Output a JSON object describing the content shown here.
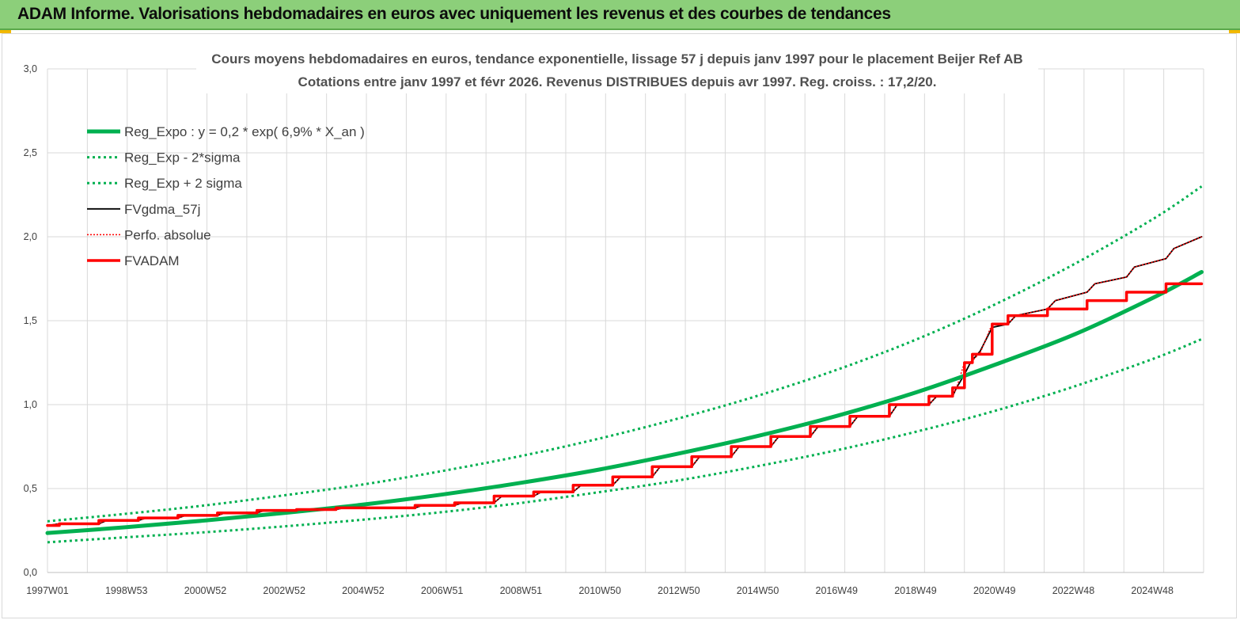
{
  "header": {
    "title": "ADAM Informe. Valorisations hebdomadaires en euros avec uniquement les revenus et des courbes de tendances"
  },
  "colors": {
    "header_bg": "#8ccf7a",
    "trend": "#00b050",
    "fv": "#000000",
    "adam": "#ff0000",
    "grid": "#d9d9d9"
  },
  "chart_data": {
    "type": "line",
    "title": "Cours moyens hebdomadaires en euros, tendance exponentielle, lissage 57 j depuis janv 1997 pour le placement Beijer Ref AB",
    "subtitle": "Cotations entre janv 1997 et févr 2026. Revenus DISTRIBUES depuis avr 1997. Reg. croiss. : 17,2/20.",
    "xlabel": "",
    "ylabel": "",
    "x_tick_labels": [
      "1997W01",
      "1998W53",
      "2000W52",
      "2002W52",
      "2004W52",
      "2006W51",
      "2008W51",
      "2010W50",
      "2012W50",
      "2014W50",
      "2016W49",
      "2018W49",
      "2020W49",
      "2022W48",
      "2024W48"
    ],
    "y_tick_labels": [
      "0,0",
      "0,5",
      "1,0",
      "1,5",
      "2,0",
      "2,5",
      "3,0"
    ],
    "ylim": [
      0,
      3
    ],
    "xlim": [
      1997.0,
      2026.25
    ],
    "grid": true,
    "legend_position": "top-left",
    "legend": [
      {
        "label": "Reg_Expo : y = 0,2 * exp( 6,9% *  X_an )",
        "color": "#00b050",
        "style": "solid-thick"
      },
      {
        "label": "Reg_Exp - 2*sigma",
        "color": "#00b050",
        "style": "dotted"
      },
      {
        "label": "Reg_Exp + 2 sigma",
        "color": "#00b050",
        "style": "dotted"
      },
      {
        "label": "FVgdma_57j",
        "color": "#000000",
        "style": "solid-thin"
      },
      {
        "label": "Perfo. absolue",
        "color": "#ff0000",
        "style": "dotted"
      },
      {
        "label": "FVADAM",
        "color": "#ff0000",
        "style": "solid-thick"
      }
    ],
    "series": [
      {
        "name": "Reg_Expo : y = 0,2 * exp( 6,9% *  X_an )",
        "x": [
          1997.0,
          1999.0,
          2001.0,
          2003.0,
          2005.0,
          2007.0,
          2009.0,
          2011.0,
          2013.0,
          2015.0,
          2017.0,
          2019.0,
          2021.0,
          2023.0,
          2025.0,
          2026.2
        ],
        "y": [
          0.235,
          0.27,
          0.31,
          0.355,
          0.405,
          0.465,
          0.535,
          0.615,
          0.71,
          0.815,
          0.935,
          1.075,
          1.24,
          1.42,
          1.64,
          1.79
        ]
      },
      {
        "name": "Reg_Exp - 2*sigma",
        "x": [
          1997.0,
          1999.0,
          2001.0,
          2003.0,
          2005.0,
          2007.0,
          2009.0,
          2011.0,
          2013.0,
          2015.0,
          2017.0,
          2019.0,
          2021.0,
          2023.0,
          2025.0,
          2026.2
        ],
        "y": [
          0.18,
          0.21,
          0.24,
          0.275,
          0.315,
          0.36,
          0.415,
          0.48,
          0.55,
          0.635,
          0.73,
          0.84,
          0.965,
          1.11,
          1.275,
          1.39
        ]
      },
      {
        "name": "Reg_Exp + 2 sigma",
        "x": [
          1997.0,
          1999.0,
          2001.0,
          2003.0,
          2005.0,
          2007.0,
          2009.0,
          2011.0,
          2013.0,
          2015.0,
          2017.0,
          2019.0,
          2021.0,
          2023.0,
          2025.0,
          2026.2
        ],
        "y": [
          0.305,
          0.35,
          0.4,
          0.46,
          0.525,
          0.605,
          0.695,
          0.8,
          0.92,
          1.055,
          1.21,
          1.39,
          1.6,
          1.84,
          2.11,
          2.3
        ]
      },
      {
        "name": "FVgdma_57j",
        "x": [
          1997.0,
          1997.3,
          1998.3,
          1998.5,
          1999.3,
          1999.5,
          2000.3,
          2000.5,
          2001.3,
          2001.5,
          2002.3,
          2002.5,
          2003.3,
          2003.5,
          2004.3,
          2004.5,
          2006.3,
          2006.5,
          2007.3,
          2007.5,
          2008.3,
          2008.5,
          2009.3,
          2009.5,
          2010.3,
          2010.5,
          2011.3,
          2011.5,
          2012.3,
          2012.5,
          2013.3,
          2013.5,
          2014.3,
          2014.5,
          2015.3,
          2015.5,
          2016.3,
          2016.5,
          2017.3,
          2017.5,
          2018.3,
          2018.5,
          2019.3,
          2019.5,
          2019.9,
          2020.0,
          2020.2,
          2020.35,
          2020.6,
          2020.9,
          2021.3,
          2021.5,
          2022.3,
          2022.5,
          2023.3,
          2023.5,
          2024.3,
          2024.5,
          2025.3,
          2025.5,
          2026.2
        ],
        "y": [
          0.28,
          0.29,
          0.29,
          0.31,
          0.31,
          0.325,
          0.325,
          0.34,
          0.34,
          0.355,
          0.355,
          0.37,
          0.37,
          0.375,
          0.375,
          0.385,
          0.385,
          0.4,
          0.4,
          0.415,
          0.415,
          0.455,
          0.455,
          0.48,
          0.48,
          0.52,
          0.52,
          0.57,
          0.57,
          0.63,
          0.63,
          0.69,
          0.69,
          0.75,
          0.75,
          0.81,
          0.81,
          0.87,
          0.87,
          0.93,
          0.93,
          1.0,
          1.0,
          1.05,
          1.05,
          1.1,
          1.18,
          1.25,
          1.32,
          1.46,
          1.48,
          1.53,
          1.57,
          1.62,
          1.67,
          1.72,
          1.76,
          1.82,
          1.87,
          1.93,
          2.0
        ]
      },
      {
        "name": "Perfo. absolue",
        "x": [
          1997.0,
          1997.3,
          1998.3,
          1998.5,
          1999.3,
          1999.5,
          2000.3,
          2000.5,
          2001.3,
          2001.5,
          2002.3,
          2002.5,
          2003.3,
          2003.5,
          2004.3,
          2004.5,
          2006.3,
          2006.5,
          2007.3,
          2007.5,
          2008.3,
          2008.5,
          2009.3,
          2009.5,
          2010.3,
          2010.5,
          2011.3,
          2011.5,
          2012.3,
          2012.5,
          2013.3,
          2013.5,
          2014.3,
          2014.5,
          2015.3,
          2015.5,
          2016.3,
          2016.5,
          2017.3,
          2017.5,
          2018.3,
          2018.5,
          2019.3,
          2019.5,
          2019.9,
          2020.0,
          2020.2,
          2020.35,
          2020.6,
          2020.9,
          2021.3,
          2021.5,
          2022.3,
          2022.5,
          2023.3,
          2023.5,
          2024.3,
          2024.5,
          2025.3,
          2025.5,
          2026.2
        ],
        "y": [
          0.28,
          0.29,
          0.29,
          0.31,
          0.31,
          0.325,
          0.325,
          0.34,
          0.34,
          0.355,
          0.355,
          0.37,
          0.37,
          0.375,
          0.375,
          0.385,
          0.385,
          0.4,
          0.4,
          0.415,
          0.415,
          0.455,
          0.455,
          0.48,
          0.48,
          0.52,
          0.52,
          0.57,
          0.57,
          0.63,
          0.63,
          0.69,
          0.69,
          0.75,
          0.75,
          0.81,
          0.81,
          0.87,
          0.87,
          0.93,
          0.93,
          1.0,
          1.0,
          1.05,
          1.05,
          1.1,
          1.25,
          1.25,
          1.31,
          1.48,
          1.48,
          1.53,
          1.57,
          1.62,
          1.67,
          1.72,
          1.76,
          1.82,
          1.87,
          1.93,
          2.0
        ]
      },
      {
        "name": "FVADAM",
        "x": [
          1997.0,
          1997.3,
          1997.3,
          1998.3,
          1998.3,
          1999.3,
          1999.3,
          2000.3,
          2000.3,
          2001.3,
          2001.3,
          2002.3,
          2002.3,
          2003.3,
          2003.3,
          2004.3,
          2004.3,
          2006.3,
          2006.3,
          2007.3,
          2007.3,
          2008.3,
          2008.3,
          2009.3,
          2009.3,
          2010.3,
          2010.3,
          2011.3,
          2011.3,
          2012.3,
          2012.3,
          2013.3,
          2013.3,
          2014.3,
          2014.3,
          2015.3,
          2015.3,
          2016.3,
          2016.3,
          2017.3,
          2017.3,
          2018.3,
          2018.3,
          2019.3,
          2019.3,
          2019.9,
          2019.9,
          2020.2,
          2020.2,
          2020.4,
          2020.4,
          2020.9,
          2020.9,
          2021.3,
          2021.3,
          2022.3,
          2022.3,
          2023.3,
          2023.3,
          2024.3,
          2024.3,
          2025.3,
          2025.3,
          2026.2
        ],
        "y": [
          0.28,
          0.28,
          0.29,
          0.29,
          0.31,
          0.31,
          0.325,
          0.325,
          0.34,
          0.34,
          0.355,
          0.355,
          0.37,
          0.37,
          0.375,
          0.375,
          0.385,
          0.385,
          0.4,
          0.4,
          0.415,
          0.415,
          0.455,
          0.455,
          0.48,
          0.48,
          0.52,
          0.52,
          0.57,
          0.57,
          0.63,
          0.63,
          0.69,
          0.69,
          0.75,
          0.75,
          0.81,
          0.81,
          0.87,
          0.87,
          0.93,
          0.93,
          1.0,
          1.0,
          1.05,
          1.05,
          1.1,
          1.1,
          1.25,
          1.25,
          1.3,
          1.3,
          1.48,
          1.48,
          1.53,
          1.53,
          1.57,
          1.57,
          1.62,
          1.62,
          1.67,
          1.67,
          1.72,
          1.72
        ]
      }
    ]
  }
}
